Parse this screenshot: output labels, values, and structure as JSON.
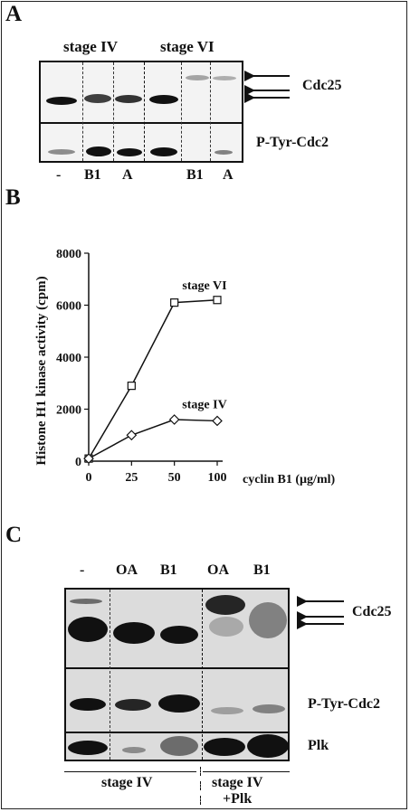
{
  "panels": {
    "a": {
      "letter": "A",
      "stage_labels": [
        "stage IV",
        "stage VI"
      ],
      "lane_labels": [
        "-",
        "B1",
        "A",
        "B1",
        "A"
      ],
      "row_labels": [
        "Cdc25",
        "P-Tyr-Cdc2"
      ]
    },
    "b": {
      "letter": "B"
    },
    "c": {
      "letter": "C",
      "lane_labels": [
        "-",
        "OA",
        "B1",
        "OA",
        "B1"
      ],
      "row_labels": [
        "Cdc25",
        "P-Tyr-Cdc2",
        "Plk"
      ],
      "group_labels": [
        "stage IV",
        "stage IV",
        "+Plk"
      ]
    }
  },
  "chart_data": {
    "type": "line",
    "title": "",
    "xlabel": "cyclin B1 (µg/ml)",
    "ylabel": "Histone H1 kinase activity (cpm)",
    "x": [
      0,
      25,
      50,
      100
    ],
    "x_tick_labels": [
      "0",
      "25",
      "50",
      "100"
    ],
    "y_tick_labels": [
      "0",
      "2000",
      "4000",
      "6000",
      "8000"
    ],
    "ylim": [
      0,
      8000
    ],
    "grid": false,
    "series": [
      {
        "name": "stage VI",
        "marker": "square",
        "values": [
          100,
          2900,
          6100,
          6200
        ]
      },
      {
        "name": "stage IV",
        "marker": "diamond",
        "values": [
          100,
          1000,
          1600,
          1550
        ]
      }
    ]
  }
}
